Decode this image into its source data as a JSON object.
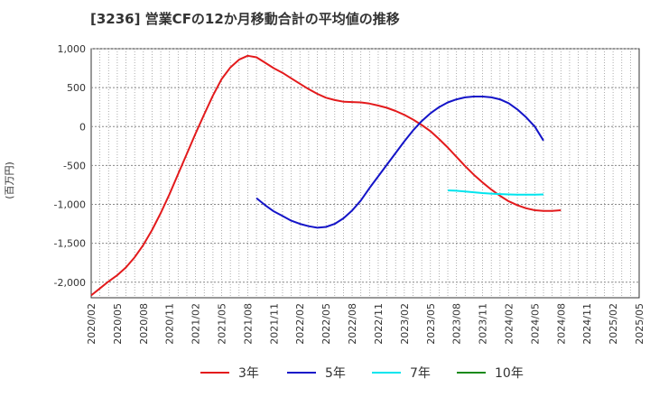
{
  "chart_data": {
    "type": "line",
    "title": "[3236]  営業CFの12か月移動合計の平均値の推移",
    "ylabel": "(百万円)",
    "ylim": [
      -2200,
      1000
    ],
    "yticks": [
      1000,
      500,
      0,
      -500,
      -1000,
      -1500,
      -2000
    ],
    "ytick_labels": [
      "1,000",
      "500",
      "0",
      "-500",
      "-1,000",
      "-1,500",
      "-2,000"
    ],
    "xlim": [
      "2020/02",
      "2025/05"
    ],
    "xtick_labels": [
      "2020/02",
      "2020/05",
      "2020/08",
      "2020/11",
      "2021/02",
      "2021/05",
      "2021/08",
      "2021/11",
      "2022/02",
      "2022/05",
      "2022/08",
      "2022/11",
      "2023/02",
      "2023/05",
      "2023/08",
      "2023/11",
      "2024/02",
      "2024/05",
      "2024/08",
      "2024/11",
      "2025/02",
      "2025/05"
    ],
    "grid": true,
    "legend_position": "bottom",
    "series": [
      {
        "name": "3年",
        "color": "#e31a1c",
        "points": [
          [
            "2020/02",
            -2170
          ],
          [
            "2020/03",
            -2080
          ],
          [
            "2020/04",
            -1990
          ],
          [
            "2020/05",
            -1910
          ],
          [
            "2020/06",
            -1810
          ],
          [
            "2020/07",
            -1680
          ],
          [
            "2020/08",
            -1520
          ],
          [
            "2020/09",
            -1330
          ],
          [
            "2020/10",
            -1110
          ],
          [
            "2020/11",
            -870
          ],
          [
            "2020/12",
            -610
          ],
          [
            "2021/01",
            -350
          ],
          [
            "2021/02",
            -90
          ],
          [
            "2021/03",
            160
          ],
          [
            "2021/04",
            400
          ],
          [
            "2021/05",
            610
          ],
          [
            "2021/06",
            760
          ],
          [
            "2021/07",
            860
          ],
          [
            "2021/08",
            910
          ],
          [
            "2021/09",
            890
          ],
          [
            "2021/10",
            820
          ],
          [
            "2021/11",
            750
          ],
          [
            "2021/12",
            690
          ],
          [
            "2022/01",
            620
          ],
          [
            "2022/02",
            550
          ],
          [
            "2022/03",
            480
          ],
          [
            "2022/04",
            420
          ],
          [
            "2022/05",
            370
          ],
          [
            "2022/06",
            340
          ],
          [
            "2022/07",
            320
          ],
          [
            "2022/08",
            315
          ],
          [
            "2022/09",
            310
          ],
          [
            "2022/10",
            295
          ],
          [
            "2022/11",
            270
          ],
          [
            "2022/12",
            240
          ],
          [
            "2023/01",
            200
          ],
          [
            "2023/02",
            150
          ],
          [
            "2023/03",
            90
          ],
          [
            "2023/04",
            20
          ],
          [
            "2023/05",
            -60
          ],
          [
            "2023/06",
            -160
          ],
          [
            "2023/07",
            -270
          ],
          [
            "2023/08",
            -390
          ],
          [
            "2023/09",
            -510
          ],
          [
            "2023/10",
            -620
          ],
          [
            "2023/11",
            -720
          ],
          [
            "2023/12",
            -810
          ],
          [
            "2024/01",
            -890
          ],
          [
            "2024/02",
            -960
          ],
          [
            "2024/03",
            -1010
          ],
          [
            "2024/04",
            -1050
          ],
          [
            "2024/05",
            -1075
          ],
          [
            "2024/06",
            -1085
          ],
          [
            "2024/07",
            -1085
          ],
          [
            "2024/08",
            -1075
          ]
        ]
      },
      {
        "name": "5年",
        "color": "#1414c8",
        "points": [
          [
            "2021/09",
            -920
          ],
          [
            "2021/10",
            -1010
          ],
          [
            "2021/11",
            -1090
          ],
          [
            "2021/12",
            -1150
          ],
          [
            "2022/01",
            -1210
          ],
          [
            "2022/02",
            -1250
          ],
          [
            "2022/03",
            -1280
          ],
          [
            "2022/04",
            -1300
          ],
          [
            "2022/05",
            -1290
          ],
          [
            "2022/06",
            -1250
          ],
          [
            "2022/07",
            -1180
          ],
          [
            "2022/08",
            -1080
          ],
          [
            "2022/09",
            -950
          ],
          [
            "2022/10",
            -790
          ],
          [
            "2022/11",
            -640
          ],
          [
            "2022/12",
            -490
          ],
          [
            "2023/01",
            -340
          ],
          [
            "2023/02",
            -190
          ],
          [
            "2023/03",
            -50
          ],
          [
            "2023/04",
            70
          ],
          [
            "2023/05",
            170
          ],
          [
            "2023/06",
            250
          ],
          [
            "2023/07",
            310
          ],
          [
            "2023/08",
            350
          ],
          [
            "2023/09",
            375
          ],
          [
            "2023/10",
            385
          ],
          [
            "2023/11",
            385
          ],
          [
            "2023/12",
            375
          ],
          [
            "2024/01",
            350
          ],
          [
            "2024/02",
            300
          ],
          [
            "2024/03",
            220
          ],
          [
            "2024/04",
            120
          ],
          [
            "2024/05",
            0
          ],
          [
            "2024/06",
            -180
          ]
        ]
      },
      {
        "name": "7年",
        "color": "#00e5ee",
        "points": [
          [
            "2023/07",
            -820
          ],
          [
            "2023/08",
            -825
          ],
          [
            "2023/09",
            -835
          ],
          [
            "2023/10",
            -845
          ],
          [
            "2023/11",
            -855
          ],
          [
            "2023/12",
            -862
          ],
          [
            "2024/01",
            -868
          ],
          [
            "2024/02",
            -872
          ],
          [
            "2024/03",
            -875
          ],
          [
            "2024/04",
            -876
          ],
          [
            "2024/05",
            -875
          ],
          [
            "2024/06",
            -873
          ]
        ]
      },
      {
        "name": "10年",
        "color": "#1a8a1a",
        "points": []
      }
    ]
  }
}
